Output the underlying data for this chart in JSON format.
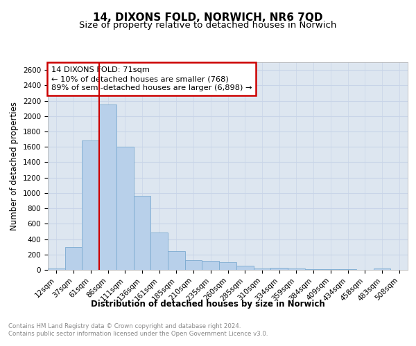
{
  "title": "14, DIXONS FOLD, NORWICH, NR6 7QD",
  "subtitle": "Size of property relative to detached houses in Norwich",
  "xlabel": "Distribution of detached houses by size in Norwich",
  "ylabel": "Number of detached properties",
  "categories": [
    "12sqm",
    "37sqm",
    "61sqm",
    "86sqm",
    "111sqm",
    "136sqm",
    "161sqm",
    "185sqm",
    "210sqm",
    "235sqm",
    "260sqm",
    "285sqm",
    "310sqm",
    "334sqm",
    "359sqm",
    "384sqm",
    "409sqm",
    "434sqm",
    "458sqm",
    "483sqm",
    "508sqm"
  ],
  "values": [
    20,
    295,
    1680,
    2150,
    1600,
    960,
    490,
    245,
    130,
    120,
    95,
    50,
    22,
    30,
    15,
    10,
    8,
    5,
    3,
    20,
    3
  ],
  "bar_color": "#b8d0ea",
  "bar_edge_color": "#7aaad0",
  "annotation_text": "14 DIXONS FOLD: 71sqm\n← 10% of detached houses are smaller (768)\n89% of semi-detached houses are larger (6,898) →",
  "annotation_box_color": "#ffffff",
  "annotation_box_edge_color": "#cc0000",
  "ylim": [
    0,
    2700
  ],
  "yticks": [
    0,
    200,
    400,
    600,
    800,
    1000,
    1200,
    1400,
    1600,
    1800,
    2000,
    2200,
    2400,
    2600
  ],
  "grid_color": "#c8d4e8",
  "bg_color": "#dde6f0",
  "footer_text": "Contains HM Land Registry data © Crown copyright and database right 2024.\nContains public sector information licensed under the Open Government Licence v3.0.",
  "red_line_color": "#cc0000",
  "title_fontsize": 11,
  "subtitle_fontsize": 9.5,
  "tick_fontsize": 7.5
}
